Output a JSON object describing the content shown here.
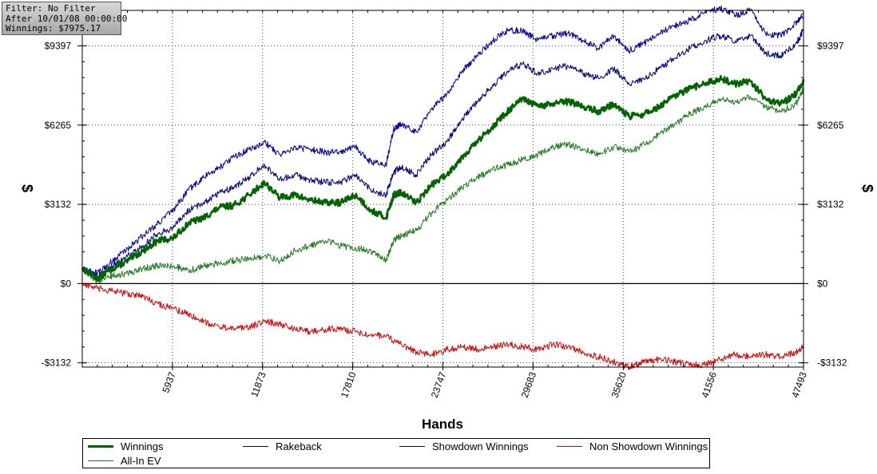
{
  "info": {
    "filter": "Filter: No Filter",
    "after": "After 10/01/08 00:00:00",
    "winnings": "Winnings: $7975.17"
  },
  "chart_data": {
    "type": "line",
    "title": "",
    "xlabel": "Hands",
    "ylabel": "$",
    "xlim": [
      0,
      47493
    ],
    "ylim": [
      -3300,
      10800
    ],
    "x_ticks": [
      5937,
      11873,
      17810,
      23747,
      29683,
      35620,
      41556,
      47493
    ],
    "x_tick_labels": [
      "5937",
      "11873",
      "17810",
      "23747",
      "29683",
      "35620",
      "41556",
      "47493"
    ],
    "y_ticks": [
      -3132,
      0,
      3132,
      6265,
      9397
    ],
    "y_tick_labels": [
      "-$3132",
      "$0",
      "$3132",
      "$6265",
      "$9397"
    ],
    "grid": true,
    "legend_position": "bottom",
    "series": [
      {
        "name": "Winnings",
        "color": "#006400",
        "x": [
          0,
          1000,
          2000,
          3000,
          4000,
          5000,
          6000,
          7000,
          8000,
          9000,
          10000,
          11000,
          12000,
          13000,
          14000,
          15000,
          16000,
          17000,
          18000,
          19000,
          20000,
          20500,
          21000,
          22000,
          23000,
          24000,
          25000,
          26000,
          27000,
          28000,
          29000,
          30000,
          31000,
          32000,
          33000,
          34000,
          35000,
          36000,
          37000,
          38000,
          39000,
          40000,
          41000,
          42000,
          43000,
          44000,
          45000,
          46000,
          47000,
          47493
        ],
        "y": [
          600,
          200,
          600,
          900,
          1300,
          1700,
          1800,
          2400,
          2600,
          3000,
          3100,
          3500,
          4000,
          3400,
          3500,
          3300,
          3200,
          3200,
          3500,
          2900,
          2600,
          3500,
          3600,
          3200,
          3900,
          4300,
          5000,
          5600,
          6200,
          6800,
          7300,
          7000,
          7100,
          7200,
          7000,
          6800,
          7100,
          6600,
          6700,
          7000,
          7400,
          7700,
          7900,
          8100,
          7900,
          8000,
          7300,
          7100,
          7500,
          7975
        ]
      },
      {
        "name": "Rakeback",
        "color": "#000080",
        "x": [
          0,
          1000,
          2000,
          3000,
          4000,
          5000,
          6000,
          7000,
          8000,
          9000,
          10000,
          11000,
          12000,
          13000,
          14000,
          15000,
          16000,
          17000,
          18000,
          19000,
          20000,
          20500,
          21000,
          22000,
          23000,
          24000,
          25000,
          26000,
          27000,
          28000,
          29000,
          30000,
          31000,
          32000,
          33000,
          34000,
          35000,
          36000,
          37000,
          38000,
          39000,
          40000,
          41000,
          42000,
          43000,
          44000,
          45000,
          46000,
          47000,
          47493
        ],
        "y": [
          600,
          300,
          700,
          1100,
          1500,
          2000,
          2200,
          2900,
          3200,
          3600,
          3800,
          4200,
          4700,
          4100,
          4300,
          4100,
          4000,
          4000,
          4300,
          3700,
          3500,
          4400,
          4600,
          4300,
          5100,
          5600,
          6500,
          7200,
          7800,
          8400,
          8700,
          8300,
          8500,
          8600,
          8300,
          8100,
          8500,
          7900,
          8100,
          8500,
          8900,
          9300,
          9600,
          9800,
          9600,
          9800,
          9100,
          9000,
          9500,
          10000
        ]
      },
      {
        "name": "Showdown Winnings",
        "color": "#0000a0",
        "x": [
          0,
          1000,
          2000,
          3000,
          4000,
          5000,
          6000,
          7000,
          8000,
          9000,
          10000,
          11000,
          12000,
          13000,
          14000,
          15000,
          16000,
          17000,
          18000,
          19000,
          20000,
          20500,
          21000,
          22000,
          23000,
          24000,
          25000,
          26000,
          27000,
          28000,
          29000,
          30000,
          31000,
          32000,
          33000,
          34000,
          35000,
          36000,
          37000,
          38000,
          39000,
          40000,
          41000,
          42000,
          43000,
          44000,
          45000,
          46000,
          47000,
          47493
        ],
        "y": [
          600,
          400,
          900,
          1400,
          1900,
          2400,
          2900,
          3700,
          4200,
          4600,
          5000,
          5300,
          5600,
          5100,
          5400,
          5300,
          5200,
          5200,
          5400,
          4800,
          4700,
          6100,
          6300,
          6000,
          6900,
          7500,
          8400,
          9000,
          9600,
          10000,
          10000,
          9600,
          9800,
          9900,
          9600,
          9300,
          9800,
          9200,
          9500,
          9900,
          10200,
          10400,
          10700,
          10900,
          10600,
          10800,
          9900,
          9800,
          10300,
          10600
        ]
      },
      {
        "name": "Non Showdown Winnings",
        "color": "#e00000",
        "x": [
          0,
          1000,
          2000,
          3000,
          4000,
          5000,
          6000,
          7000,
          8000,
          9000,
          10000,
          11000,
          12000,
          13000,
          14000,
          15000,
          16000,
          17000,
          18000,
          19000,
          20000,
          21000,
          22000,
          23000,
          24000,
          25000,
          26000,
          27000,
          28000,
          29000,
          30000,
          31000,
          32000,
          33000,
          34000,
          35000,
          36000,
          37000,
          38000,
          39000,
          40000,
          41000,
          42000,
          43000,
          44000,
          45000,
          46000,
          47000,
          47493
        ],
        "y": [
          0,
          -200,
          -300,
          -400,
          -500,
          -800,
          -1000,
          -1200,
          -1500,
          -1700,
          -1800,
          -1700,
          -1500,
          -1600,
          -1800,
          -1900,
          -1800,
          -1800,
          -1900,
          -2000,
          -2100,
          -2400,
          -2700,
          -2800,
          -2600,
          -2500,
          -2600,
          -2500,
          -2400,
          -2500,
          -2600,
          -2400,
          -2500,
          -2700,
          -2900,
          -3100,
          -3300,
          -3100,
          -3000,
          -3100,
          -3200,
          -3200,
          -3000,
          -2800,
          -2900,
          -2800,
          -2900,
          -2700,
          -2500
        ]
      },
      {
        "name": "All-In EV",
        "color": "#1e7a1e",
        "x": [
          0,
          1000,
          2000,
          3000,
          4000,
          5000,
          6000,
          7000,
          8000,
          9000,
          10000,
          11000,
          12000,
          13000,
          14000,
          15000,
          16000,
          17000,
          18000,
          19000,
          20000,
          20500,
          21000,
          22000,
          23000,
          24000,
          25000,
          26000,
          27000,
          28000,
          29000,
          30000,
          31000,
          32000,
          33000,
          34000,
          35000,
          36000,
          37000,
          38000,
          39000,
          40000,
          41000,
          42000,
          43000,
          44000,
          45000,
          46000,
          47000,
          47493
        ],
        "y": [
          600,
          100,
          300,
          400,
          600,
          700,
          700,
          500,
          700,
          800,
          900,
          1000,
          1100,
          900,
          1300,
          1500,
          1700,
          1500,
          1400,
          1300,
          900,
          1700,
          1900,
          2100,
          2800,
          3300,
          3800,
          4200,
          4500,
          4700,
          4900,
          5100,
          5400,
          5500,
          5300,
          5100,
          5400,
          5200,
          5500,
          5900,
          6300,
          6700,
          7000,
          7300,
          7200,
          7400,
          7000,
          6800,
          7100,
          7700
        ]
      }
    ]
  },
  "legend": {
    "items": [
      {
        "label": "Winnings",
        "color": "#006400"
      },
      {
        "label": "Rakeback",
        "color": "#000080"
      },
      {
        "label": "Showdown Winnings",
        "color": "#0000a0"
      },
      {
        "label": "Non Showdown Winnings",
        "color": "#e00000"
      },
      {
        "label": "All-In EV",
        "color": "#1e7a1e"
      }
    ]
  }
}
